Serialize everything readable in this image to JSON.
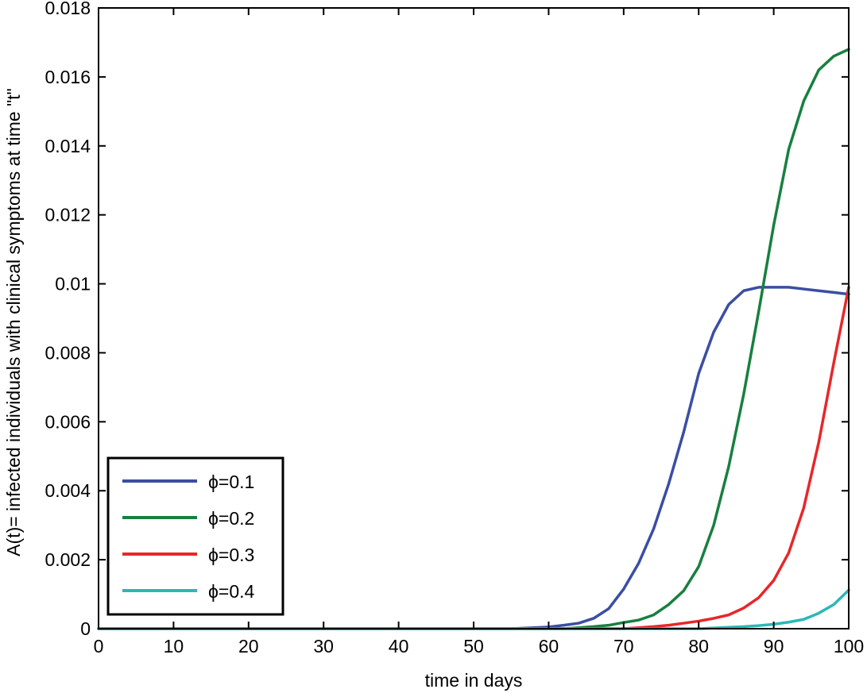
{
  "chart_data": {
    "type": "line",
    "title": "",
    "xlabel": "time in days",
    "ylabel": "A(t)= infected individuals with clinical symptoms at time \"t\"",
    "xlim": [
      0,
      100
    ],
    "ylim": [
      0,
      0.018
    ],
    "x_ticks": [
      0,
      10,
      20,
      30,
      40,
      50,
      60,
      70,
      80,
      90,
      100
    ],
    "x_tick_labels": [
      "0",
      "10",
      "20",
      "30",
      "40",
      "50",
      "60",
      "70",
      "80",
      "90",
      "100"
    ],
    "y_ticks": [
      0,
      0.002,
      0.004,
      0.006,
      0.008,
      0.01,
      0.012,
      0.014,
      0.016,
      0.018
    ],
    "y_tick_labels": [
      "0",
      "0.002",
      "0.004",
      "0.006",
      "0.008",
      "0.01",
      "0.012",
      "0.014",
      "0.016",
      "0.018"
    ],
    "grid": false,
    "legend_position": "bottom-left",
    "series": [
      {
        "name": "ϕ=0.1",
        "color": "#3b4ea3",
        "x": [
          0,
          55,
          58,
          60,
          62,
          64,
          66,
          68,
          70,
          72,
          74,
          76,
          78,
          80,
          82,
          84,
          86,
          88,
          90,
          92,
          94,
          96,
          98,
          100
        ],
        "y": [
          0,
          0,
          3e-05,
          5e-05,
          0.0001,
          0.00016,
          0.0003,
          0.00058,
          0.00115,
          0.0019,
          0.0029,
          0.0042,
          0.0057,
          0.0074,
          0.0086,
          0.0094,
          0.0098,
          0.0099,
          0.0099,
          0.0099,
          0.00985,
          0.0098,
          0.00975,
          0.0097
        ]
      },
      {
        "name": "ϕ=0.2",
        "color": "#17803f",
        "x": [
          0,
          62,
          64,
          66,
          68,
          70,
          72,
          74,
          76,
          78,
          80,
          82,
          84,
          86,
          88,
          90,
          92,
          94,
          96,
          98,
          100
        ],
        "y": [
          0,
          0,
          3e-05,
          6e-05,
          0.0001,
          0.00018,
          0.00025,
          0.0004,
          0.0007,
          0.0011,
          0.0018,
          0.003,
          0.0047,
          0.0068,
          0.0092,
          0.0117,
          0.0139,
          0.0153,
          0.0162,
          0.0166,
          0.0168
        ]
      },
      {
        "name": "ϕ=0.3",
        "color": "#e8262a",
        "x": [
          0,
          70,
          72,
          74,
          76,
          78,
          80,
          82,
          84,
          86,
          88,
          90,
          92,
          94,
          96,
          98,
          100
        ],
        "y": [
          0,
          0,
          3e-05,
          6e-05,
          0.0001,
          0.00016,
          0.00022,
          0.0003,
          0.0004,
          0.0006,
          0.0009,
          0.0014,
          0.0022,
          0.0035,
          0.0054,
          0.0077,
          0.0099
        ]
      },
      {
        "name": "ϕ=0.4",
        "color": "#2ab8b8",
        "x": [
          0,
          80,
          82,
          84,
          86,
          88,
          90,
          92,
          94,
          96,
          98,
          100
        ],
        "y": [
          0,
          0,
          2e-05,
          4e-05,
          6e-05,
          9e-05,
          0.00013,
          0.00019,
          0.00027,
          0.00045,
          0.0007,
          0.00112
        ]
      }
    ]
  }
}
